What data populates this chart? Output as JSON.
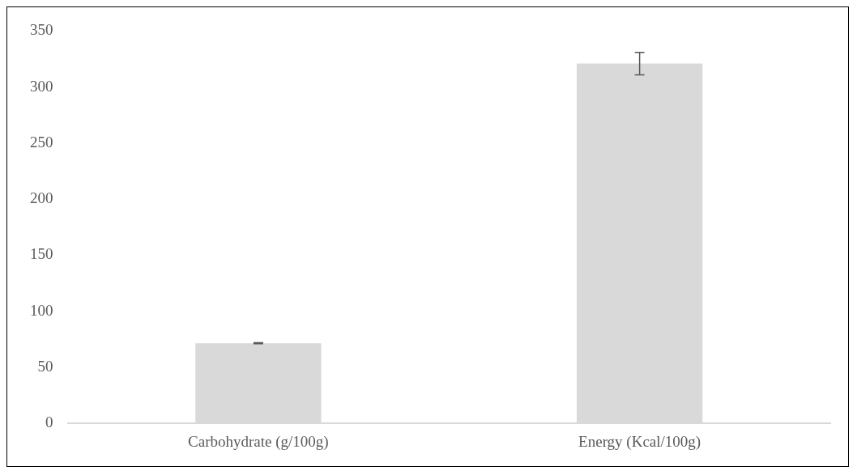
{
  "chart_data": {
    "type": "bar",
    "categories": [
      "Carbohydrate (g/100g)",
      "Energy (Kcal/100g)"
    ],
    "values": [
      71.5,
      321
    ],
    "errors": [
      0.5,
      10
    ],
    "color": "#d9d9d9",
    "ylim": [
      0,
      350
    ],
    "yticks": [
      0,
      50,
      100,
      150,
      200,
      250,
      300,
      350
    ],
    "grid": false,
    "legend": false
  }
}
